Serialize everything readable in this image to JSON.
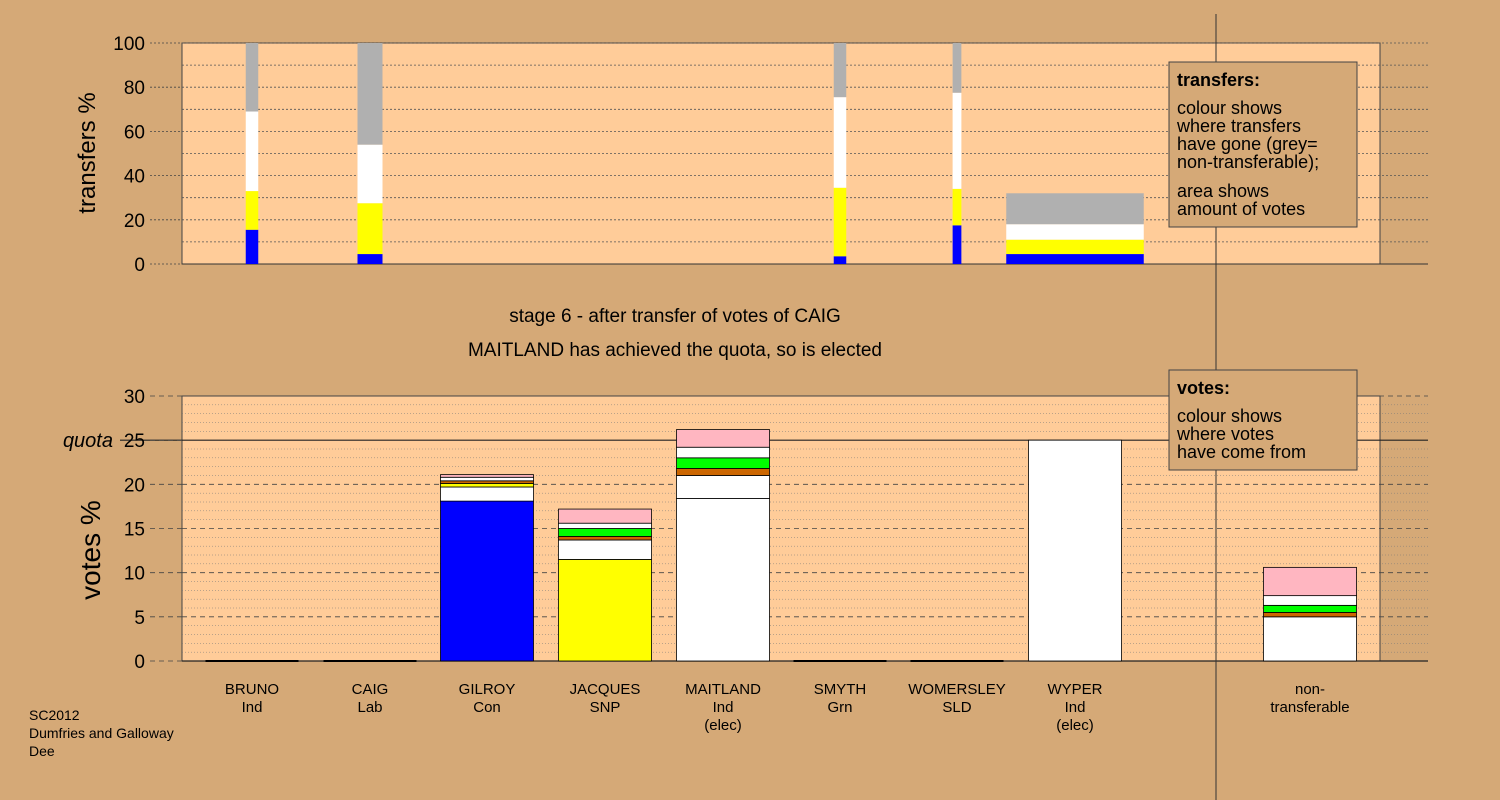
{
  "stage_title": "stage 6 - after transfer of votes of CAIG",
  "stage_subtitle": "MAITLAND has achieved the quota, so is elected",
  "footer": [
    "SC2012",
    "Dumfries and Galloway",
    "Dee"
  ],
  "transfers_legend": {
    "title": "transfers:",
    "lines1": [
      "colour shows",
      "where transfers",
      "have gone (grey=",
      "non-transferable);"
    ],
    "lines2": [
      "area shows",
      "amount of votes"
    ]
  },
  "votes_legend": {
    "title": "votes:",
    "lines": [
      "colour shows",
      "where votes",
      "have come from"
    ]
  },
  "quota_label": "quota",
  "colors": {
    "background": "#D5A977",
    "plot_bg": "#FFCC99",
    "Con": "#0000FF",
    "SNP": "#FFFF00",
    "Ind": "#FFFFFF",
    "Grn": "#00FF00",
    "SLD": "#CC6600",
    "Lab": "#FFB6C1",
    "non_transferable": "#B0B0B0"
  },
  "chart_data": [
    {
      "type": "bar",
      "name": "transfers",
      "ylabel": "transfers %",
      "ylim": [
        0,
        100
      ],
      "yticks": [
        0,
        20,
        40,
        60,
        80,
        100
      ],
      "grid": true,
      "legend_placement": "top-right",
      "bars": [
        {
          "candidate": "BRUNO",
          "width_share": 1,
          "segments": [
            {
              "party": "Con",
              "value": 15.5
            },
            {
              "party": "SNP",
              "value": 17.5
            },
            {
              "party": "Ind",
              "value": 36
            },
            {
              "party": "non_transferable",
              "value": 31
            }
          ]
        },
        {
          "candidate": "CAIG",
          "width_share": 2,
          "segments": [
            {
              "party": "Con",
              "value": 4.5
            },
            {
              "party": "SNP",
              "value": 23
            },
            {
              "party": "Ind",
              "value": 26.5
            },
            {
              "party": "non_transferable",
              "value": 46
            }
          ]
        },
        {
          "candidate": "SMYTH",
          "width_share": 1,
          "segments": [
            {
              "party": "Con",
              "value": 3.5
            },
            {
              "party": "SNP",
              "value": 31
            },
            {
              "party": "Ind",
              "value": 41
            },
            {
              "party": "non_transferable",
              "value": 24.5
            }
          ]
        },
        {
          "candidate": "WOMERSLEY",
          "width_share": 0.7,
          "segments": [
            {
              "party": "Con",
              "value": 17.5
            },
            {
              "party": "SNP",
              "value": 16.5
            },
            {
              "party": "Ind",
              "value": 43.5
            },
            {
              "party": "non_transferable",
              "value": 22.5
            }
          ]
        },
        {
          "candidate": "WYPER",
          "width_share": 11,
          "segments": [
            {
              "party": "Con",
              "value": 4.5
            },
            {
              "party": "SNP",
              "value": 6.5
            },
            {
              "party": "Ind",
              "value": 7
            },
            {
              "party": "non_transferable",
              "value": 14
            }
          ]
        }
      ]
    },
    {
      "type": "bar",
      "name": "votes",
      "ylabel": "votes %",
      "ylim": [
        0,
        30
      ],
      "yticks": [
        0,
        5,
        10,
        15,
        20,
        25,
        30
      ],
      "quota": 25,
      "grid": true,
      "legend_placement": "top-right",
      "candidates": [
        {
          "name": "BRUNO",
          "party": "Ind",
          "note": "",
          "segments": []
        },
        {
          "name": "CAIG",
          "party": "Lab",
          "note": "",
          "segments": []
        },
        {
          "name": "GILROY",
          "party": "Con",
          "note": "",
          "segments": [
            {
              "party": "Con",
              "value": 18.1
            },
            {
              "party": "Ind",
              "value": 1.6
            },
            {
              "party": "SNP",
              "value": 0.4
            },
            {
              "party": "SLD",
              "value": 0.3
            },
            {
              "party": "Ind",
              "value": 0.4
            },
            {
              "party": "Lab",
              "value": 0.3
            }
          ]
        },
        {
          "name": "JACQUES",
          "party": "SNP",
          "note": "",
          "segments": [
            {
              "party": "SNP",
              "value": 11.5
            },
            {
              "party": "Ind",
              "value": 2.2
            },
            {
              "party": "SLD",
              "value": 0.4
            },
            {
              "party": "Grn",
              "value": 0.9
            },
            {
              "party": "Ind",
              "value": 0.6
            },
            {
              "party": "Lab",
              "value": 1.6
            }
          ]
        },
        {
          "name": "MAITLAND",
          "party": "Ind",
          "note": "(elec)",
          "segments": [
            {
              "party": "Ind",
              "value": 18.4
            },
            {
              "party": "Ind",
              "value": 2.6
            },
            {
              "party": "SLD",
              "value": 0.8
            },
            {
              "party": "Grn",
              "value": 1.2
            },
            {
              "party": "Ind",
              "value": 1.2
            },
            {
              "party": "Lab",
              "value": 2.0
            }
          ]
        },
        {
          "name": "SMYTH",
          "party": "Grn",
          "note": "",
          "segments": []
        },
        {
          "name": "WOMERSLEY",
          "party": "SLD",
          "note": "",
          "segments": []
        },
        {
          "name": "WYPER",
          "party": "Ind",
          "note": "(elec)",
          "segments": [
            {
              "party": "Ind",
              "value": 25.0
            }
          ]
        },
        {
          "name": "non-\ntransferable",
          "party": "",
          "note": "",
          "segments": [
            {
              "party": "Ind",
              "value": 5.0
            },
            {
              "party": "SLD",
              "value": 0.5
            },
            {
              "party": "Grn",
              "value": 0.8
            },
            {
              "party": "Ind",
              "value": 1.1
            },
            {
              "party": "Lab",
              "value": 3.2
            }
          ]
        }
      ]
    }
  ]
}
